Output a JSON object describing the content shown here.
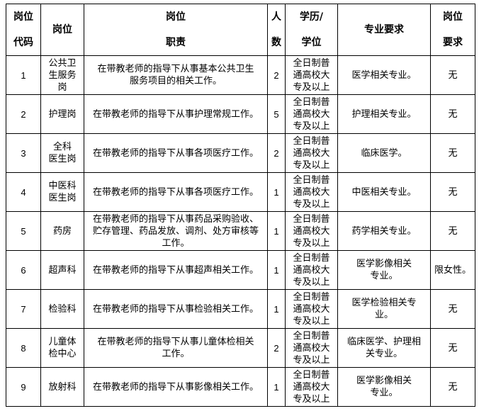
{
  "headers": [
    "岗位\n代码",
    "岗位",
    "岗位\n职责",
    "人\n数",
    "学历/\n学位",
    "专业要求",
    "岗位\n要求"
  ],
  "rows": [
    {
      "code": "1",
      "post": "公共卫\n生服务\n岗",
      "duty": "在带教老师的指导下从事基本公共卫生\n服务项目的相关工作。",
      "count": "2",
      "edu": "全日制普\n通高校大\n专及以上",
      "major": "医学相关专业。",
      "req": "无"
    },
    {
      "code": "2",
      "post": "护理岗",
      "duty": "在带教老师的指导下从事护理常规工作。",
      "count": "5",
      "edu": "全日制普\n通高校大\n专及以上",
      "major": "护理相关专业。",
      "req": "无"
    },
    {
      "code": "3",
      "post": "全科\n医生岗",
      "duty": "在带教老师的指导下从事各项医疗工作。",
      "count": "2",
      "edu": "全日制普\n通高校大\n专及以上",
      "major": "临床医学。",
      "req": "无"
    },
    {
      "code": "4",
      "post": "中医科\n医生岗",
      "duty": "在带教老师的指导下从事各项医疗工作。",
      "count": "1",
      "edu": "全日制普\n通高校大\n专及以上",
      "major": "中医相关专业。",
      "req": "无"
    },
    {
      "code": "5",
      "post": "药房",
      "duty": "在带教老师的指导下从事药品采购验收、\n贮存管理、药品发放、调剂、处方审核等\n工作。",
      "count": "1",
      "edu": "全日制普\n通高校大\n专及以上",
      "major": "药学相关专业。",
      "req": "无"
    },
    {
      "code": "6",
      "post": "超声科",
      "duty": "在带教老师的指导下从事超声相关工作。",
      "count": "1",
      "edu": "全日制普\n通高校大\n专及以上",
      "major": "医学影像相关\n专业。",
      "req": "限女性。"
    },
    {
      "code": "7",
      "post": "检验科",
      "duty": "在带教老师的指导下从事检验相关工作。",
      "count": "1",
      "edu": "全日制普\n通高校大\n专及以上",
      "major": "医学检验相关专\n业。",
      "req": "无"
    },
    {
      "code": "8",
      "post": "儿童体\n检中心",
      "duty": "在带教老师的指导下从事儿童体检相关\n工作。",
      "count": "2",
      "edu": "全日制普\n通高校大\n专及以上",
      "major": "临床医学、护理相\n关专业。",
      "req": "无"
    },
    {
      "code": "9",
      "post": "放射科",
      "duty": "在带教老师的指导下从事影像相关工作。",
      "count": "1",
      "edu": "全日制普\n通高校大\n专及以上",
      "major": "医学影像相关\n专业。",
      "req": "无"
    }
  ]
}
